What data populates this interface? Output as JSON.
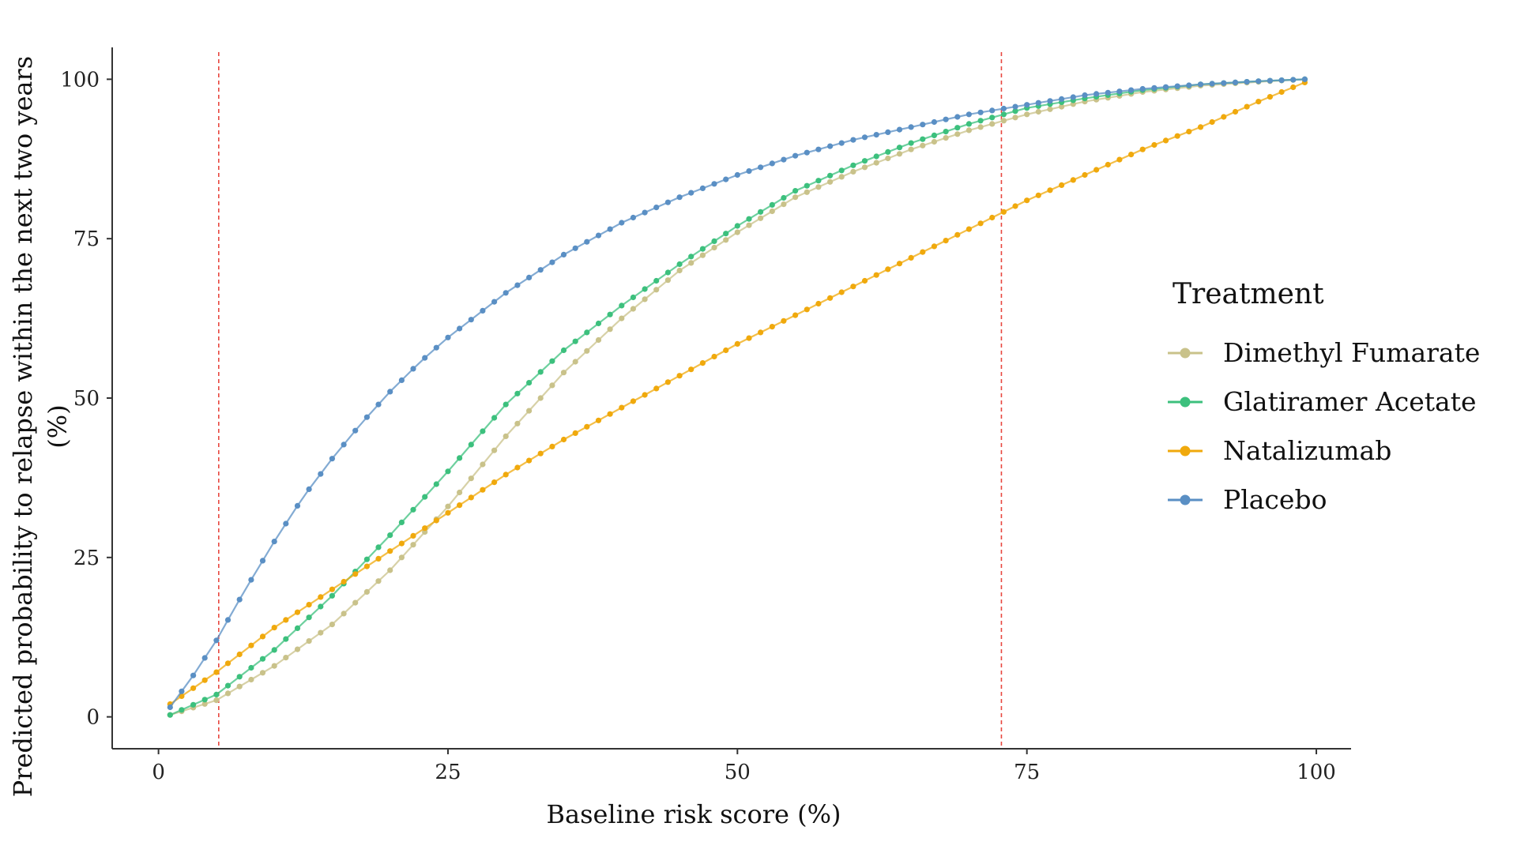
{
  "chart_data": {
    "type": "line",
    "xlabel": "Baseline risk score (%)",
    "ylabel_line1": "Predicted probability to relapse within the next two years",
    "ylabel_line2": "(%)",
    "xlim": [
      -4,
      103
    ],
    "ylim": [
      -5,
      105
    ],
    "x_ticks": [
      0,
      25,
      50,
      75,
      100
    ],
    "y_ticks": [
      0,
      25,
      50,
      75,
      100
    ],
    "grid": false,
    "reference_lines_x": [
      5.2,
      72.8
    ],
    "reference_line_color": "#e8473f",
    "legend": {
      "title": "Treatment",
      "placement": "right"
    },
    "series": [
      {
        "name": "Dimethyl Fumarate",
        "color": "#c9c28a",
        "x": [
          1,
          5,
          10,
          15,
          20,
          25,
          30,
          35,
          40,
          45,
          50,
          55,
          60,
          65,
          70,
          75,
          80,
          85,
          90,
          95,
          99
        ],
        "values": [
          0.3,
          2.6,
          8,
          14.5,
          23,
          33,
          44,
          54,
          62.5,
          70,
          76,
          81.5,
          85.5,
          89,
          92,
          94.5,
          96.5,
          98,
          99,
          99.6,
          100
        ]
      },
      {
        "name": "Glatiramer Acetate",
        "color": "#3cc07d",
        "x": [
          1,
          5,
          10,
          15,
          20,
          25,
          30,
          35,
          40,
          45,
          50,
          55,
          60,
          65,
          70,
          75,
          80,
          85,
          90,
          95,
          99
        ],
        "values": [
          0.3,
          3.5,
          10.5,
          19,
          28.5,
          38.5,
          49,
          57.5,
          64.5,
          71,
          77,
          82.5,
          86.5,
          90,
          93,
          95.5,
          97,
          98.3,
          99.2,
          99.7,
          100
        ]
      },
      {
        "name": "Natalizumab",
        "color": "#f0a90c",
        "x": [
          1,
          5,
          10,
          15,
          20,
          25,
          30,
          35,
          40,
          45,
          50,
          55,
          60,
          65,
          70,
          75,
          80,
          85,
          90,
          95,
          99
        ],
        "values": [
          2,
          7,
          14,
          20,
          26,
          32,
          38,
          43.5,
          48.5,
          53.5,
          58.5,
          63,
          67.5,
          72,
          76.5,
          81,
          85,
          89,
          92.5,
          96.5,
          99.5
        ]
      },
      {
        "name": "Placebo",
        "color": "#5a8fc4",
        "x": [
          1,
          2,
          3,
          5,
          7.5,
          10,
          12.5,
          15,
          17.5,
          20,
          22.5,
          25,
          30,
          35,
          40,
          45,
          50,
          55,
          60,
          65,
          70,
          75,
          80,
          85,
          90,
          95,
          99
        ],
        "values": [
          1.5,
          4,
          6.5,
          12,
          20,
          27.5,
          34.5,
          40.5,
          46,
          51,
          55.5,
          59.5,
          66.5,
          72.5,
          77.5,
          81.5,
          85,
          88,
          90.5,
          92.5,
          94.5,
          96,
          97.5,
          98.5,
          99.2,
          99.7,
          100
        ]
      }
    ]
  }
}
